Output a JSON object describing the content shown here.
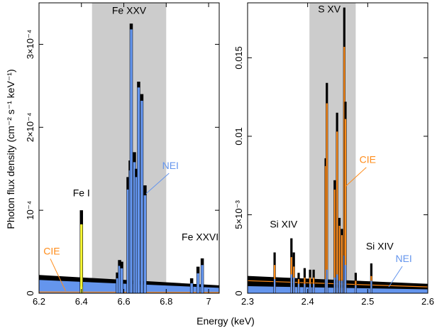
{
  "figure": {
    "xlabel": "Energy (keV)",
    "ylabel": "Photon flux density (cm⁻² s⁻¹ keV⁻¹)"
  },
  "colors": {
    "black": "#000000",
    "nei": "#6495ed",
    "cie": "#ff8c1a",
    "fe_i_line": "#ffff33",
    "shade": "#cccccc"
  },
  "chart_data": [
    {
      "type": "line",
      "xlim": [
        6.2,
        7.05
      ],
      "ylim": [
        0,
        0.00035
      ],
      "xticks": [
        6.2,
        6.4,
        6.6,
        6.8,
        7.0
      ],
      "xtick_labels": [
        "6.2",
        "6.4",
        "6.6",
        "6.8",
        "7"
      ],
      "yticks": [
        0,
        0.0001,
        0.0002,
        0.0003
      ],
      "ytick_labels": [
        "0",
        "10⁻⁴",
        "2×10⁻⁴",
        "3×10⁻⁴"
      ],
      "shaded_band": [
        6.45,
        6.8
      ],
      "continuum": {
        "black": [
          2.2e-05,
          9.5e-06
        ],
        "nei": [
          1.6e-05,
          6.5e-06
        ],
        "cie": [
          1.5e-06,
          1e-06
        ]
      },
      "lines": [
        {
          "x": 6.4,
          "black": 0.0001,
          "nei": 8e-06,
          "cie": 2e-06,
          "fe_i": 8.3e-05
        },
        {
          "x": 6.57,
          "black": 2.5e-05,
          "nei": 1.8e-05
        },
        {
          "x": 6.58,
          "black": 4e-05,
          "nei": 3.3e-05
        },
        {
          "x": 6.59,
          "black": 3.8e-05,
          "nei": 3e-05
        },
        {
          "x": 6.62,
          "black": 0.00014,
          "nei": 0.000125
        },
        {
          "x": 6.63,
          "black": 0.00016,
          "nei": 0.000148
        },
        {
          "x": 6.635,
          "black": 0.000325,
          "nei": 0.000318
        },
        {
          "x": 6.65,
          "black": 0.00017,
          "nei": 0.000158
        },
        {
          "x": 6.66,
          "black": 0.00015,
          "nei": 0.00014
        },
        {
          "x": 6.67,
          "black": 0.000255,
          "nei": 0.000248
        },
        {
          "x": 6.685,
          "black": 0.00024,
          "nei": 0.000232
        },
        {
          "x": 6.7,
          "black": 0.00013,
          "nei": 0.000118
        },
        {
          "x": 6.92,
          "black": 1.8e-05,
          "nei": 1.2e-05
        },
        {
          "x": 6.95,
          "black": 3.2e-05,
          "nei": 2.4e-05
        },
        {
          "x": 6.97,
          "black": 4.2e-05,
          "nei": 3.4e-05
        }
      ],
      "annotations": [
        {
          "text": "Fe XXV",
          "x": 6.625,
          "y": 0.000335
        },
        {
          "text": "Fe I",
          "x": 6.4,
          "y": 0.000115
        },
        {
          "text": "Fe XXVI",
          "x": 6.96,
          "y": 6.2e-05
        },
        {
          "text": "NEI",
          "x": 6.82,
          "y": 0.000148,
          "to_x": 6.705,
          "to_y": 0.00012,
          "color": "#6495ed"
        },
        {
          "text": "CIE",
          "x": 6.26,
          "y": 4.5e-05,
          "to_x": 6.325,
          "to_y": 3e-06,
          "color": "#ff8c1a"
        }
      ]
    },
    {
      "type": "line",
      "xlim": [
        2.3,
        2.6
      ],
      "ylim": [
        0,
        0.0185
      ],
      "xticks": [
        2.3,
        2.4,
        2.5,
        2.6
      ],
      "xtick_labels": [
        "2.3",
        "2.4",
        "2.5",
        "2.6"
      ],
      "yticks": [
        0,
        0.005,
        0.01,
        0.015
      ],
      "ytick_labels": [
        "0",
        "5×10⁻³",
        "0.01",
        "0.015"
      ],
      "shaded_band": [
        2.403,
        2.48
      ],
      "continuum": {
        "black": [
          0.0011,
          0.0006
        ],
        "nei": [
          0.00045,
          0.00025
        ],
        "cie": [
          0.0008,
          0.0004
        ]
      },
      "lines": [
        {
          "x": 2.345,
          "black": 0.0026,
          "nei": 0.0009,
          "cie": 0.0018
        },
        {
          "x": 2.373,
          "black": 0.0035,
          "nei": 0.0012,
          "cie": 0.0023
        },
        {
          "x": 2.377,
          "black": 0.0026,
          "nei": 0.001,
          "cie": 0.0017
        },
        {
          "x": 2.385,
          "black": 0.0013,
          "nei": 0.0006,
          "cie": 0.0009
        },
        {
          "x": 2.395,
          "black": 0.0016,
          "nei": 0.0006,
          "cie": 0.001
        },
        {
          "x": 2.404,
          "black": 0.0015,
          "nei": 0.0006,
          "cie": 0.001
        },
        {
          "x": 2.41,
          "black": 0.0015,
          "nei": 0.0006,
          "cie": 0.001
        },
        {
          "x": 2.43,
          "black": 0.0086,
          "nei": 0.0009,
          "cie": 0.0081
        },
        {
          "x": 2.432,
          "black": 0.0134,
          "nei": 0.0015,
          "cie": 0.0121
        },
        {
          "x": 2.445,
          "black": 0.0072,
          "nei": 0.001,
          "cie": 0.0066
        },
        {
          "x": 2.449,
          "black": 0.0115,
          "nei": 0.0012,
          "cie": 0.0103
        },
        {
          "x": 2.453,
          "black": 0.0048,
          "nei": 0.0008,
          "cie": 0.0043
        },
        {
          "x": 2.457,
          "black": 0.0041,
          "nei": 0.0008,
          "cie": 0.0037
        },
        {
          "x": 2.461,
          "black": 0.0182,
          "nei": 0.0024,
          "cie": 0.0157
        },
        {
          "x": 2.463,
          "black": 0.0122,
          "nei": 0.0018,
          "cie": 0.0111
        },
        {
          "x": 2.48,
          "black": 0.0013,
          "nei": 0.0005,
          "cie": 0.0008
        },
        {
          "x": 2.506,
          "black": 0.0019,
          "nei": 0.0008,
          "cie": 0.0011
        }
      ],
      "annotations": [
        {
          "text": "S XV",
          "x": 2.436,
          "y": 0.0178
        },
        {
          "text": "Si XIV",
          "x": 2.36,
          "y": 0.0041
        },
        {
          "text": "Si XIV",
          "x": 2.52,
          "y": 0.0027
        },
        {
          "text": "CIE",
          "x": 2.5,
          "y": 0.0082,
          "to_x": 2.463,
          "to_y": 0.0068,
          "color": "#ff8c1a"
        },
        {
          "text": "NEI",
          "x": 2.56,
          "y": 0.0019,
          "to_x": 2.535,
          "to_y": 0.0004,
          "color": "#6495ed"
        }
      ]
    }
  ]
}
